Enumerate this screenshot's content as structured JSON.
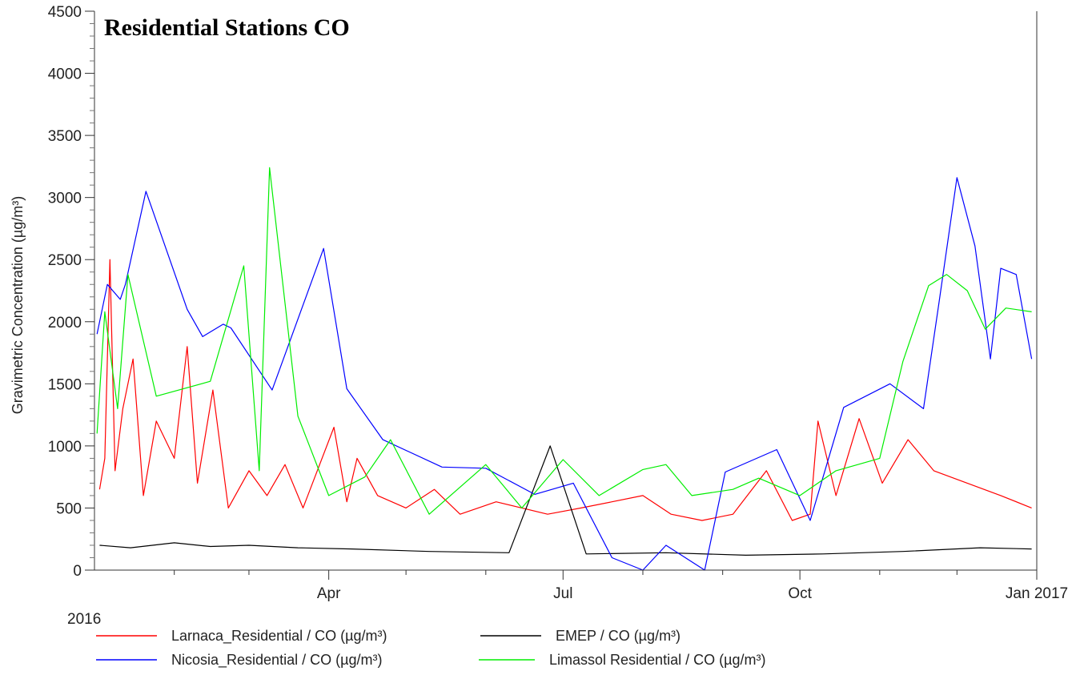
{
  "chart_data": {
    "type": "line",
    "title": "Residential Stations CO",
    "ylabel": "Gravimetric Concentration (µg/m³)",
    "xlabel": "",
    "x_start_label": "2016",
    "x_tick_labels": [
      "Apr",
      "Jul",
      "Oct",
      "Jan 2017"
    ],
    "x_range": [
      "2016-01-01",
      "2017-01-01"
    ],
    "ylim": [
      0,
      4500
    ],
    "y_ticks": [
      0,
      500,
      1000,
      1500,
      2000,
      2500,
      3000,
      3500,
      4000,
      4500
    ],
    "y_tick_labels": [
      "0",
      "500",
      "1000",
      "1500",
      "2000",
      "2500",
      "3000",
      "3500",
      "4000",
      "4500"
    ],
    "grid": false,
    "legend_position": "bottom",
    "series": [
      {
        "name": "Larnaca_Residential / CO (µg/m³)",
        "color": "#ff0000",
        "points": [
          [
            "2016-01-03",
            650
          ],
          [
            "2016-01-05",
            900
          ],
          [
            "2016-01-07",
            2500
          ],
          [
            "2016-01-09",
            800
          ],
          [
            "2016-01-12",
            1300
          ],
          [
            "2016-01-16",
            1700
          ],
          [
            "2016-01-20",
            600
          ],
          [
            "2016-01-25",
            1200
          ],
          [
            "2016-02-01",
            900
          ],
          [
            "2016-02-06",
            1800
          ],
          [
            "2016-02-10",
            700
          ],
          [
            "2016-02-16",
            1450
          ],
          [
            "2016-02-22",
            500
          ],
          [
            "2016-03-01",
            800
          ],
          [
            "2016-03-08",
            600
          ],
          [
            "2016-03-15",
            850
          ],
          [
            "2016-03-22",
            500
          ],
          [
            "2016-04-03",
            1150
          ],
          [
            "2016-04-08",
            550
          ],
          [
            "2016-04-12",
            900
          ],
          [
            "2016-04-20",
            600
          ],
          [
            "2016-05-01",
            500
          ],
          [
            "2016-05-12",
            650
          ],
          [
            "2016-05-22",
            450
          ],
          [
            "2016-06-05",
            550
          ],
          [
            "2016-06-15",
            500
          ],
          [
            "2016-06-25",
            450
          ],
          [
            "2016-07-08",
            500
          ],
          [
            "2016-07-20",
            550
          ],
          [
            "2016-08-01",
            600
          ],
          [
            "2016-08-12",
            450
          ],
          [
            "2016-08-24",
            400
          ],
          [
            "2016-09-05",
            450
          ],
          [
            "2016-09-18",
            800
          ],
          [
            "2016-09-28",
            400
          ],
          [
            "2016-10-05",
            450
          ],
          [
            "2016-10-08",
            1200
          ],
          [
            "2016-10-15",
            600
          ],
          [
            "2016-10-24",
            1220
          ],
          [
            "2016-11-02",
            700
          ],
          [
            "2016-11-12",
            1050
          ],
          [
            "2016-11-22",
            800
          ],
          [
            "2016-12-05",
            700
          ],
          [
            "2016-12-18",
            600
          ],
          [
            "2016-12-30",
            500
          ]
        ]
      },
      {
        "name": "EMEP / CO (µg/m³)",
        "color": "#000000",
        "points": [
          [
            "2016-01-03",
            200
          ],
          [
            "2016-01-15",
            180
          ],
          [
            "2016-02-01",
            220
          ],
          [
            "2016-02-15",
            190
          ],
          [
            "2016-03-01",
            200
          ],
          [
            "2016-03-20",
            180
          ],
          [
            "2016-04-10",
            170
          ],
          [
            "2016-05-10",
            150
          ],
          [
            "2016-06-10",
            140
          ],
          [
            "2016-06-26",
            1000
          ],
          [
            "2016-07-10",
            130
          ],
          [
            "2016-08-10",
            140
          ],
          [
            "2016-09-10",
            120
          ],
          [
            "2016-10-10",
            130
          ],
          [
            "2016-11-10",
            150
          ],
          [
            "2016-12-10",
            180
          ],
          [
            "2016-12-30",
            170
          ]
        ]
      },
      {
        "name": "Nicosia_Residential / CO (µg/m³)",
        "color": "#0000ff",
        "points": [
          [
            "2016-01-02",
            1900
          ],
          [
            "2016-01-06",
            2300
          ],
          [
            "2016-01-11",
            2180
          ],
          [
            "2016-01-13",
            2300
          ],
          [
            "2016-01-21",
            3050
          ],
          [
            "2016-02-06",
            2100
          ],
          [
            "2016-02-12",
            1880
          ],
          [
            "2016-02-20",
            1980
          ],
          [
            "2016-02-23",
            1950
          ],
          [
            "2016-03-10",
            1450
          ],
          [
            "2016-03-30",
            2590
          ],
          [
            "2016-04-08",
            1460
          ],
          [
            "2016-04-22",
            1050
          ],
          [
            "2016-05-15",
            830
          ],
          [
            "2016-06-01",
            820
          ],
          [
            "2016-06-20",
            610
          ],
          [
            "2016-07-05",
            700
          ],
          [
            "2016-07-20",
            100
          ],
          [
            "2016-08-01",
            0
          ],
          [
            "2016-08-10",
            200
          ],
          [
            "2016-08-25",
            0
          ],
          [
            "2016-09-02",
            790
          ],
          [
            "2016-09-22",
            970
          ],
          [
            "2016-10-05",
            400
          ],
          [
            "2016-10-18",
            1310
          ],
          [
            "2016-11-05",
            1500
          ],
          [
            "2016-11-18",
            1300
          ],
          [
            "2016-11-24",
            2150
          ],
          [
            "2016-12-01",
            3160
          ],
          [
            "2016-12-08",
            2610
          ],
          [
            "2016-12-14",
            1700
          ],
          [
            "2016-12-18",
            2430
          ],
          [
            "2016-12-24",
            2380
          ],
          [
            "2016-12-30",
            1700
          ]
        ]
      },
      {
        "name": "Limassol Residential / CO (µg/m³)",
        "color": "#00ee00",
        "points": [
          [
            "2016-01-02",
            1100
          ],
          [
            "2016-01-05",
            2080
          ],
          [
            "2016-01-10",
            1300
          ],
          [
            "2016-01-14",
            2380
          ],
          [
            "2016-01-25",
            1400
          ],
          [
            "2016-02-15",
            1520
          ],
          [
            "2016-02-28",
            2450
          ],
          [
            "2016-03-05",
            800
          ],
          [
            "2016-03-09",
            3240
          ],
          [
            "2016-03-20",
            1240
          ],
          [
            "2016-04-01",
            600
          ],
          [
            "2016-04-15",
            750
          ],
          [
            "2016-04-25",
            1050
          ],
          [
            "2016-05-10",
            450
          ],
          [
            "2016-06-01",
            850
          ],
          [
            "2016-06-15",
            500
          ],
          [
            "2016-07-01",
            890
          ],
          [
            "2016-07-15",
            600
          ],
          [
            "2016-08-01",
            810
          ],
          [
            "2016-08-10",
            850
          ],
          [
            "2016-08-20",
            600
          ],
          [
            "2016-09-05",
            650
          ],
          [
            "2016-09-15",
            740
          ],
          [
            "2016-10-01",
            600
          ],
          [
            "2016-10-15",
            800
          ],
          [
            "2016-11-01",
            900
          ],
          [
            "2016-11-10",
            1680
          ],
          [
            "2016-11-20",
            2290
          ],
          [
            "2016-11-27",
            2380
          ],
          [
            "2016-12-05",
            2250
          ],
          [
            "2016-12-12",
            1940
          ],
          [
            "2016-12-20",
            2110
          ],
          [
            "2016-12-30",
            2080
          ]
        ]
      }
    ]
  }
}
